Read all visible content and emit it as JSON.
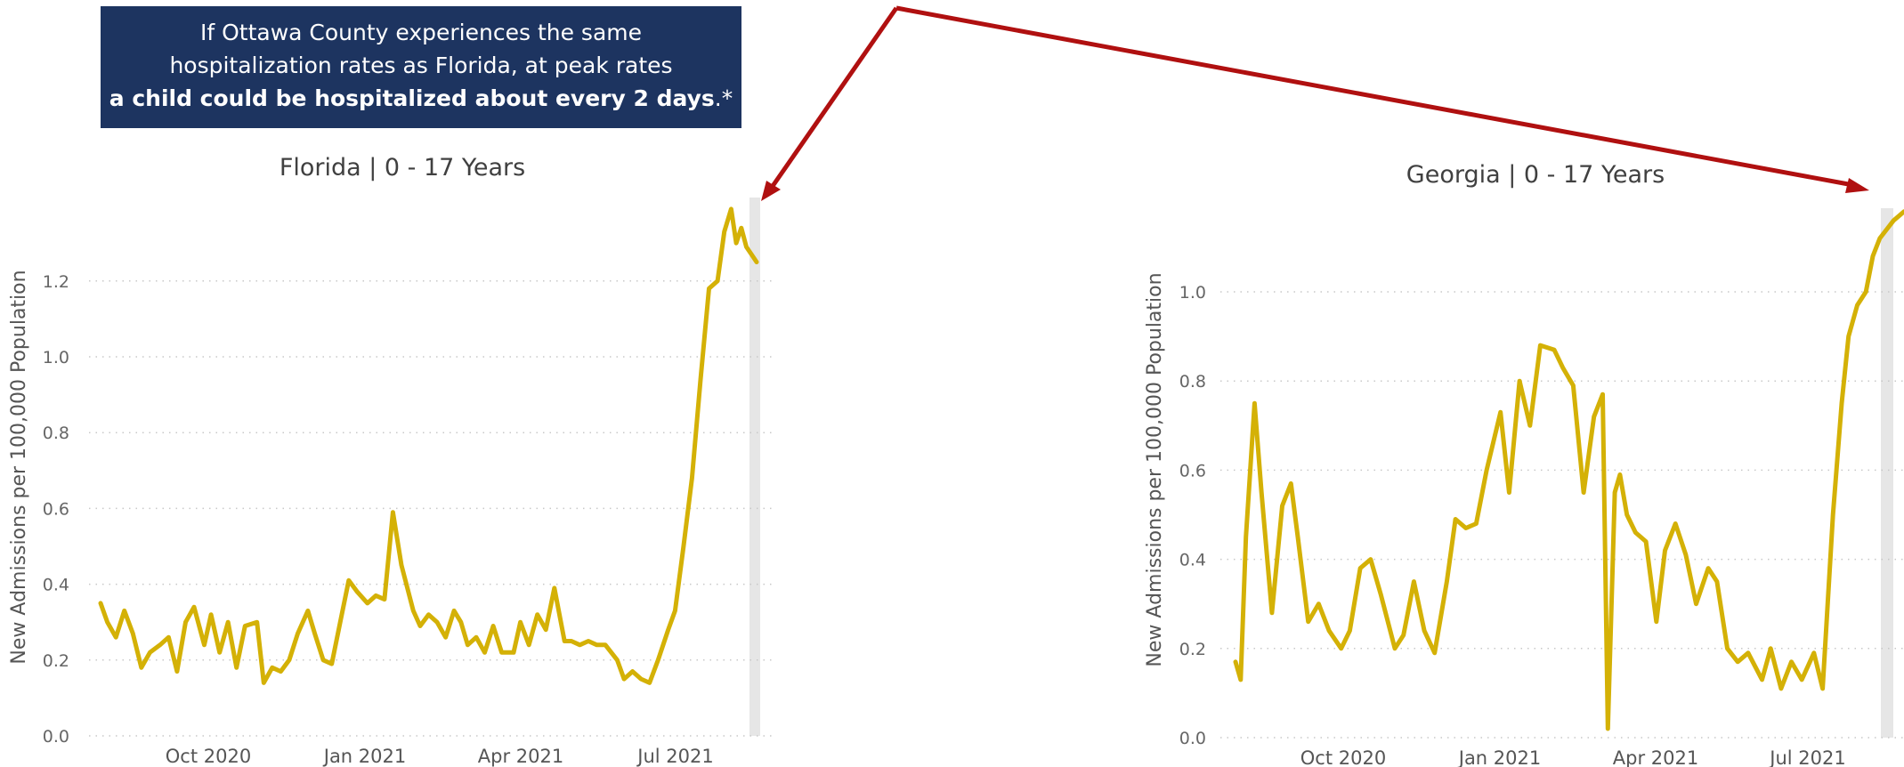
{
  "callout": {
    "line1": "If Ottawa County experiences the same",
    "line2": "hospitalization rates as Florida, at peak rates",
    "line3_bold": "a child could be hospitalized about every 2 days",
    "line3_suffix": ".*"
  },
  "colors": {
    "line": "#d4b106",
    "arrow": "#b01010",
    "callout_bg": "#1d3460",
    "grid": "#c8c8c8",
    "tick_text": "#666666"
  },
  "chart_data": [
    {
      "type": "line",
      "title": "Florida | 0 - 17 Years",
      "ylabel": "New Admissions per 100,000 Population",
      "xlabel": "",
      "x_ticks": [
        "Oct 2020",
        "Jan 2021",
        "Apr 2021",
        "Jul 2021"
      ],
      "y_ticks": [
        "0.0",
        "0.2",
        "0.4",
        "0.6",
        "0.8",
        "1.0",
        "1.2"
      ],
      "ylim": [
        0,
        1.4
      ],
      "xlim": [
        "2020-08-01",
        "2021-08-22"
      ],
      "grid": "horizontal dotted",
      "shaded_region": [
        "2021-08-15",
        "2021-08-22"
      ],
      "series": [
        {
          "x": [
            "2020-08-01",
            "2020-08-05",
            "2020-08-10",
            "2020-08-15",
            "2020-08-20",
            "2020-08-25",
            "2020-08-30",
            "2020-09-05",
            "2020-09-10",
            "2020-09-15",
            "2020-09-20",
            "2020-09-25",
            "2020-10-01",
            "2020-10-05",
            "2020-10-10",
            "2020-10-15",
            "2020-10-20",
            "2020-10-25",
            "2020-11-01",
            "2020-11-05",
            "2020-11-10",
            "2020-11-15",
            "2020-11-20",
            "2020-11-25",
            "2020-12-01",
            "2020-12-05",
            "2020-12-10",
            "2020-12-15",
            "2020-12-20",
            "2020-12-25",
            "2020-12-30",
            "2021-01-05",
            "2021-01-10",
            "2021-01-15",
            "2021-01-20",
            "2021-01-25",
            "2021-02-01",
            "2021-02-05",
            "2021-02-10",
            "2021-02-15",
            "2021-02-20",
            "2021-02-25",
            "2021-03-01",
            "2021-03-05",
            "2021-03-10",
            "2021-03-15",
            "2021-03-20",
            "2021-03-25",
            "2021-04-01",
            "2021-04-05",
            "2021-04-10",
            "2021-04-15",
            "2021-04-20",
            "2021-04-25",
            "2021-05-01",
            "2021-05-05",
            "2021-05-10",
            "2021-05-15",
            "2021-05-20",
            "2021-05-25",
            "2021-06-01",
            "2021-06-05",
            "2021-06-10",
            "2021-06-15",
            "2021-06-20",
            "2021-06-25",
            "2021-07-01",
            "2021-07-05",
            "2021-07-10",
            "2021-07-15",
            "2021-07-20",
            "2021-07-25",
            "2021-07-30",
            "2021-08-03",
            "2021-08-07",
            "2021-08-10",
            "2021-08-13",
            "2021-08-16",
            "2021-08-19",
            "2021-08-22"
          ],
          "y": [
            0.35,
            0.3,
            0.26,
            0.33,
            0.27,
            0.18,
            0.22,
            0.24,
            0.26,
            0.17,
            0.3,
            0.34,
            0.24,
            0.32,
            0.22,
            0.3,
            0.18,
            0.29,
            0.3,
            0.14,
            0.18,
            0.17,
            0.2,
            0.27,
            0.33,
            0.27,
            0.2,
            0.19,
            0.3,
            0.41,
            0.38,
            0.35,
            0.37,
            0.36,
            0.59,
            0.45,
            0.33,
            0.29,
            0.32,
            0.3,
            0.26,
            0.33,
            0.3,
            0.24,
            0.26,
            0.22,
            0.29,
            0.22,
            0.22,
            0.3,
            0.24,
            0.32,
            0.28,
            0.39,
            0.25,
            0.25,
            0.24,
            0.25,
            0.24,
            0.24,
            0.2,
            0.15,
            0.17,
            0.15,
            0.14,
            0.2,
            0.28,
            0.33,
            0.5,
            0.68,
            0.94,
            1.18,
            1.2,
            1.33,
            1.39,
            1.3,
            1.34,
            1.29,
            1.27,
            1.25
          ]
        }
      ]
    },
    {
      "type": "line",
      "title": "Georgia | 0 - 17 Years",
      "ylabel": "New Admissions per 100,000 Population",
      "xlabel": "",
      "x_ticks": [
        "Oct 2020",
        "Jan 2021",
        "Apr 2021",
        "Jul 2021"
      ],
      "y_ticks": [
        "0.0",
        "0.2",
        "0.4",
        "0.6",
        "0.8",
        "1.0"
      ],
      "ylim": [
        0,
        1.18
      ],
      "xlim": [
        "2020-08-01",
        "2021-08-22"
      ],
      "grid": "horizontal dotted",
      "shaded_region": [
        "2021-08-15",
        "2021-08-22"
      ],
      "series": [
        {
          "x": [
            "2020-08-01",
            "2020-08-04",
            "2020-08-07",
            "2020-08-12",
            "2020-08-16",
            "2020-08-22",
            "2020-08-28",
            "2020-09-02",
            "2020-09-06",
            "2020-09-12",
            "2020-09-18",
            "2020-09-24",
            "2020-10-01",
            "2020-10-06",
            "2020-10-12",
            "2020-10-18",
            "2020-10-24",
            "2020-11-01",
            "2020-11-06",
            "2020-11-12",
            "2020-11-18",
            "2020-11-24",
            "2020-12-01",
            "2020-12-06",
            "2020-12-12",
            "2020-12-18",
            "2020-12-24",
            "2021-01-01",
            "2021-01-06",
            "2021-01-12",
            "2021-01-18",
            "2021-01-24",
            "2021-02-01",
            "2021-02-06",
            "2021-02-12",
            "2021-02-18",
            "2021-02-24",
            "2021-03-01",
            "2021-03-04",
            "2021-03-08",
            "2021-03-11",
            "2021-03-15",
            "2021-03-20",
            "2021-03-26",
            "2021-04-01",
            "2021-04-06",
            "2021-04-12",
            "2021-04-18",
            "2021-04-24",
            "2021-05-01",
            "2021-05-06",
            "2021-05-12",
            "2021-05-18",
            "2021-05-24",
            "2021-06-01",
            "2021-06-06",
            "2021-06-12",
            "2021-06-18",
            "2021-06-24",
            "2021-07-01",
            "2021-07-06",
            "2021-07-12",
            "2021-07-17",
            "2021-07-21",
            "2021-07-26",
            "2021-07-31",
            "2021-08-04",
            "2021-08-08",
            "2021-08-12",
            "2021-08-16",
            "2021-08-19",
            "2021-08-22"
          ],
          "y": [
            0.17,
            0.13,
            0.45,
            0.75,
            0.55,
            0.28,
            0.52,
            0.57,
            0.45,
            0.26,
            0.3,
            0.24,
            0.2,
            0.24,
            0.38,
            0.4,
            0.32,
            0.2,
            0.23,
            0.35,
            0.24,
            0.19,
            0.35,
            0.49,
            0.47,
            0.48,
            0.6,
            0.73,
            0.55,
            0.8,
            0.7,
            0.88,
            0.87,
            0.83,
            0.79,
            0.55,
            0.72,
            0.77,
            0.02,
            0.55,
            0.59,
            0.5,
            0.46,
            0.44,
            0.26,
            0.42,
            0.48,
            0.41,
            0.3,
            0.38,
            0.35,
            0.2,
            0.17,
            0.19,
            0.13,
            0.2,
            0.11,
            0.17,
            0.13,
            0.19,
            0.11,
            0.5,
            0.75,
            0.9,
            0.97,
            1.0,
            1.08,
            1.12,
            1.14,
            1.16,
            1.17,
            1.18
          ]
        }
      ]
    }
  ]
}
